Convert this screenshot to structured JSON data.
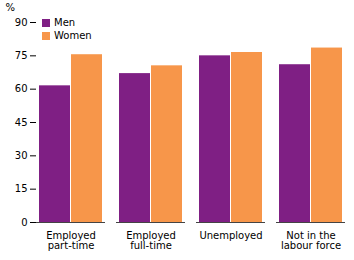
{
  "chart_data": {
    "type": "bar",
    "categories": [
      "Employed part-time",
      "Employed full-time",
      "Unemployed",
      "Not in the labour force"
    ],
    "series": [
      {
        "name": "Men",
        "color": "#7f1f84",
        "values": [
          61.5,
          67,
          75,
          71
        ]
      },
      {
        "name": "Women",
        "color": "#f7964a",
        "values": [
          75.5,
          70.5,
          76.5,
          78.5
        ]
      }
    ],
    "ylabel": "%",
    "ylim": [
      0,
      90
    ],
    "yticks": [
      0,
      15,
      30,
      45,
      60,
      75,
      90
    ],
    "grid": false,
    "legend": "top-left"
  }
}
